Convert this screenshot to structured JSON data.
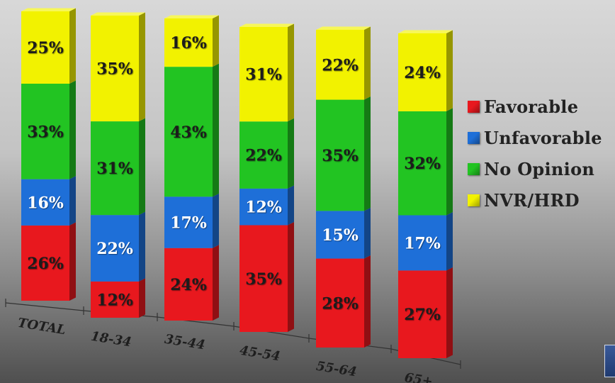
{
  "chart_data": {
    "type": "bar",
    "stacked": true,
    "categories": [
      "TOTAL",
      "18-34",
      "35-44",
      "45-54",
      "55-64",
      "65+"
    ],
    "series": [
      {
        "name": "Favorable",
        "color": "#e8181e",
        "values": [
          26,
          12,
          24,
          35,
          28,
          27
        ],
        "labels": [
          "26%",
          "12%",
          "24%",
          "35%",
          "28%",
          "27%"
        ]
      },
      {
        "name": "Unfavorable",
        "color": "#1e6fd8",
        "values": [
          16,
          22,
          17,
          12,
          15,
          17
        ],
        "labels": [
          "16%",
          "22%",
          "17%",
          "12%",
          "15%",
          "17%"
        ]
      },
      {
        "name": "No Opinion",
        "color": "#22c422",
        "values": [
          33,
          31,
          43,
          22,
          35,
          32
        ],
        "labels": [
          "33%",
          "31%",
          "43%",
          "22%",
          "35%",
          "32%"
        ]
      },
      {
        "name": "NVR/HRD",
        "color": "#f2f200",
        "values": [
          25,
          35,
          16,
          31,
          22,
          24
        ],
        "labels": [
          "25%",
          "35%",
          "16%",
          "31%",
          "22%",
          "24%"
        ]
      }
    ],
    "label_colors": [
      "#1a1a1a",
      "#ffffff",
      "#1a1a1a",
      "#1a1a1a"
    ],
    "legend_position": "right",
    "grid": false,
    "xlabel": "",
    "ylabel": ""
  },
  "legend": {
    "items": [
      {
        "label": "Favorable",
        "color": "#e8181e"
      },
      {
        "label": "Unfavorable",
        "color": "#1e6fd8"
      },
      {
        "label": "No Opinion",
        "color": "#22c422"
      },
      {
        "label": "NVR/HRD",
        "color": "#f2f200"
      }
    ]
  }
}
